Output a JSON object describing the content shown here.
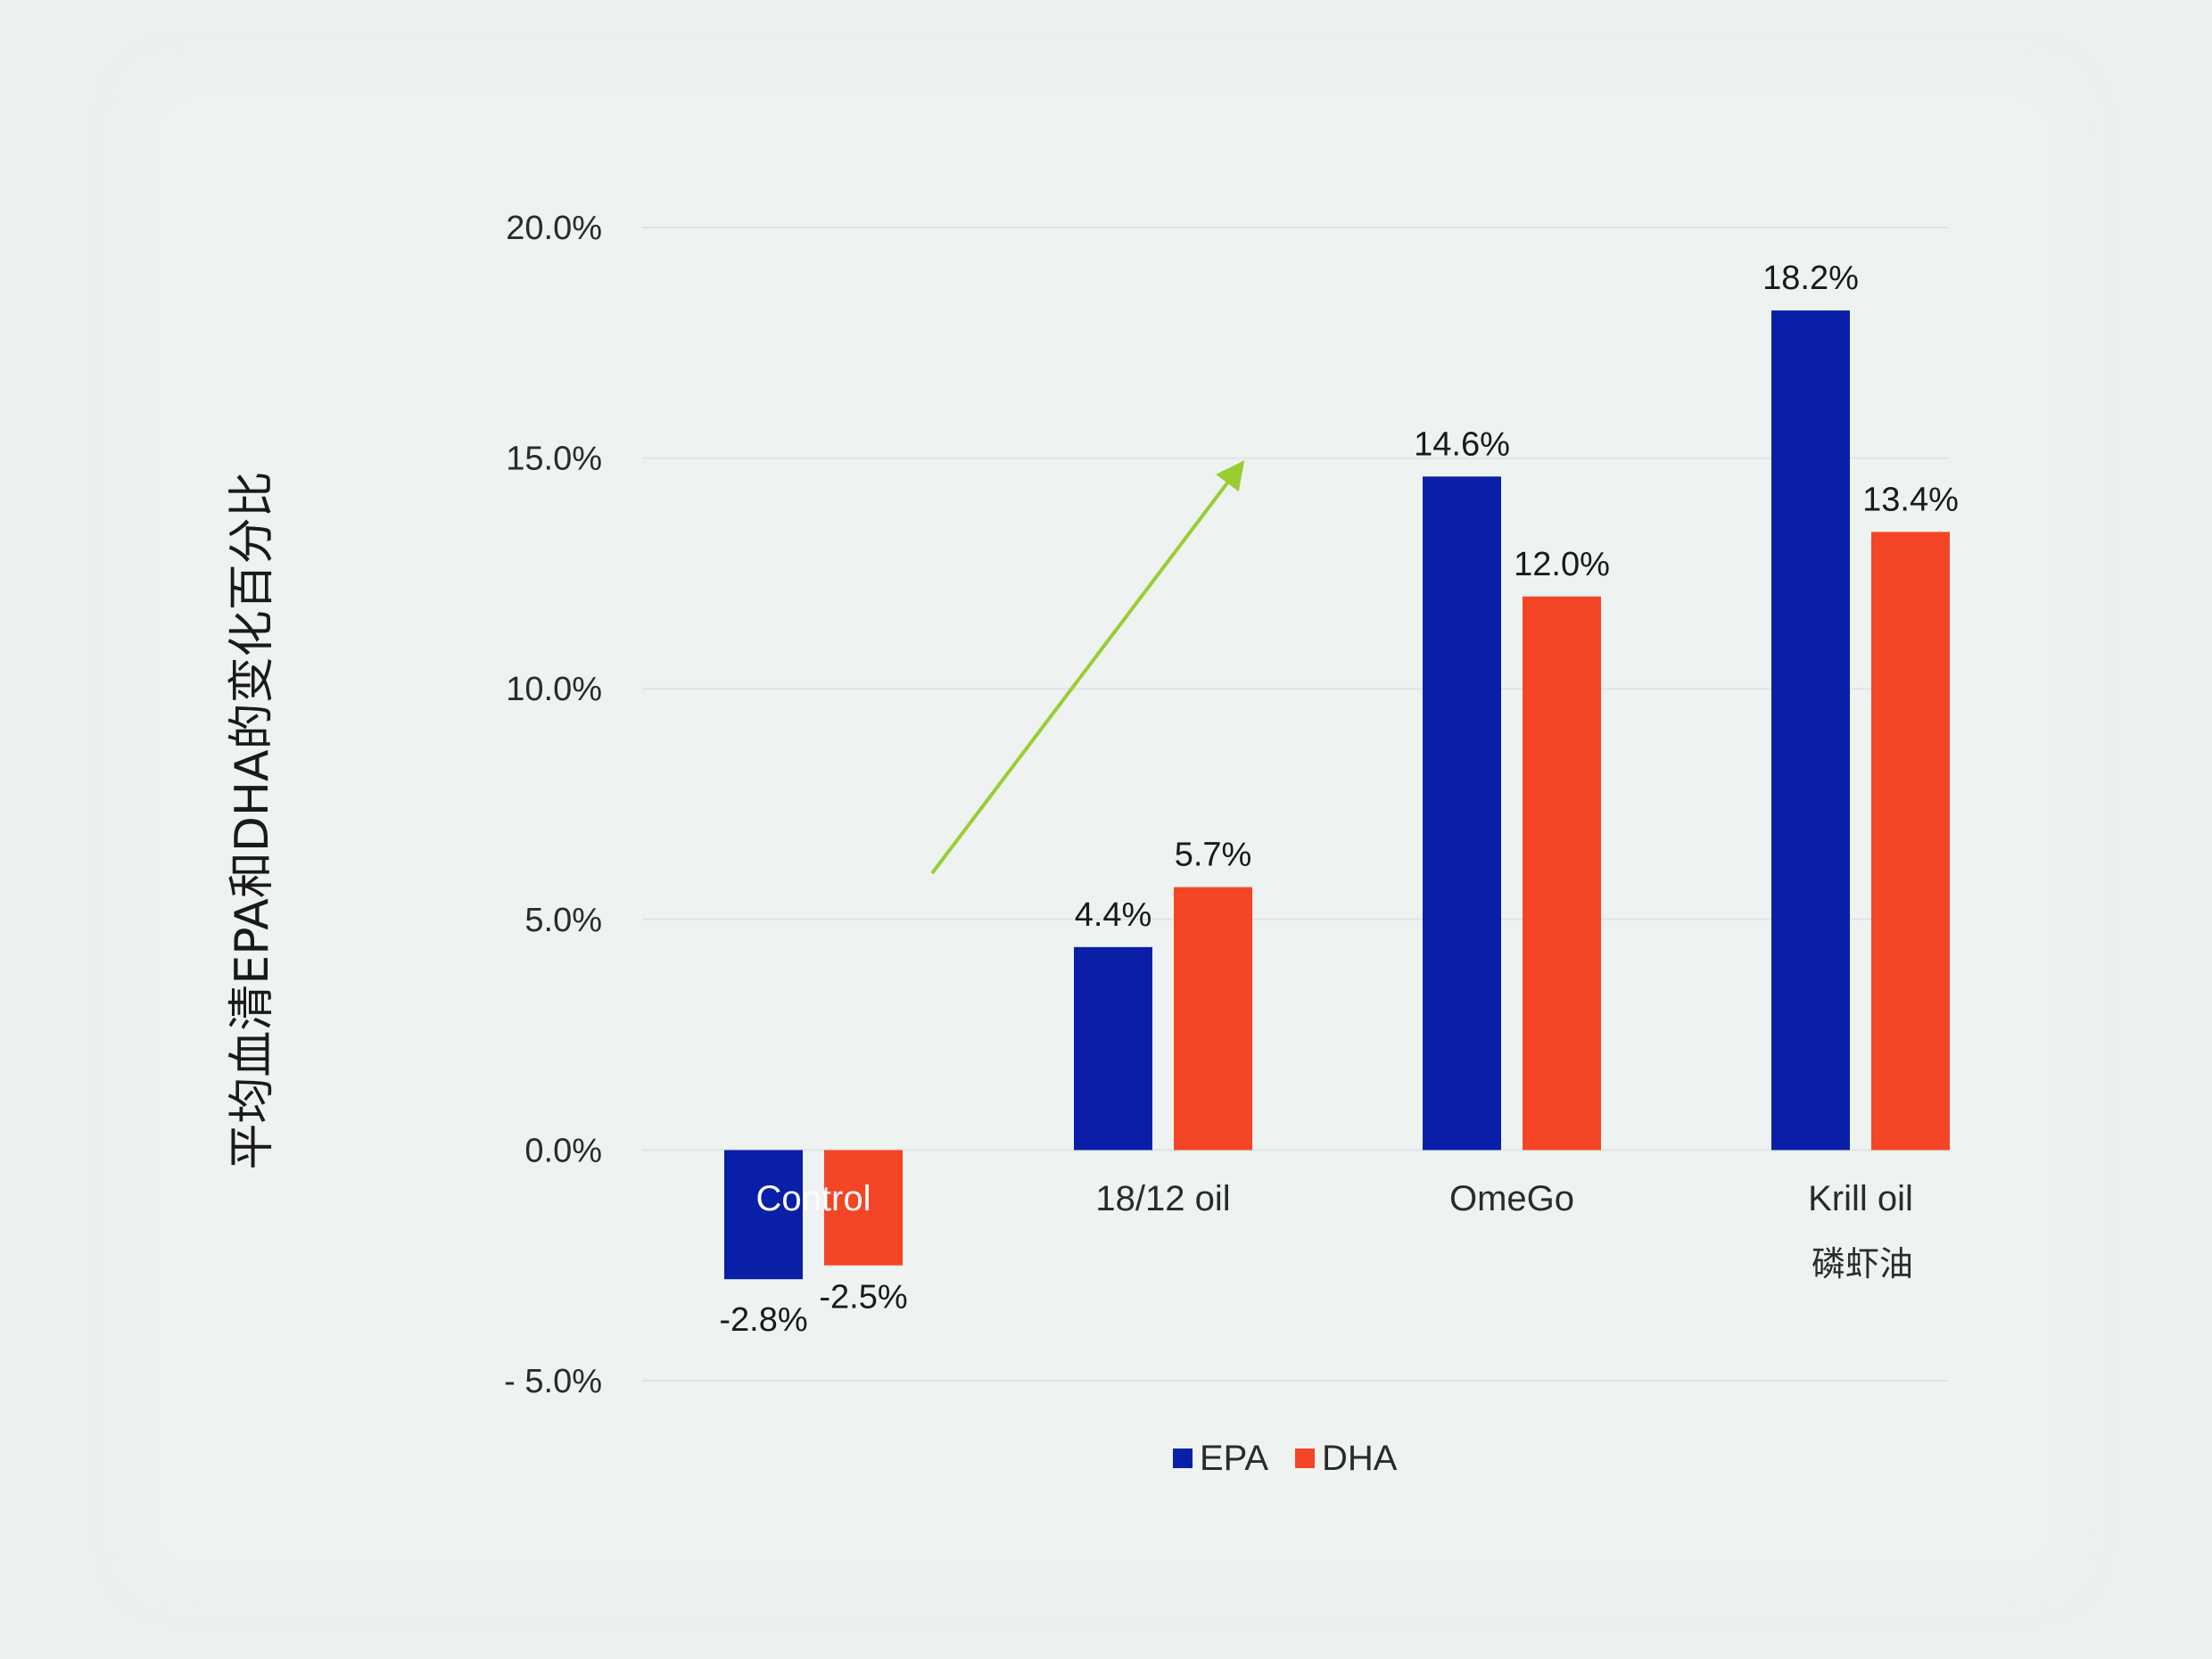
{
  "chart_data": {
    "type": "bar",
    "title": "",
    "ylabel": "平均血清EPA和DHA的变化百分比",
    "xlabel": "",
    "categories": [
      "Control",
      "18/12 oil",
      "OmeGo",
      "Krill oil"
    ],
    "category_sublabels": [
      "",
      "",
      "",
      "磷虾油"
    ],
    "series": [
      {
        "name": "EPA",
        "color": "#0a1fa8",
        "values": [
          -2.8,
          4.4,
          14.6,
          18.2
        ],
        "labels": [
          "-2.8%",
          "4.4%",
          "14.6%",
          "18.2%"
        ]
      },
      {
        "name": "DHA",
        "color": "#f44526",
        "values": [
          -2.5,
          5.7,
          12.0,
          13.4
        ],
        "labels": [
          "-2.5%",
          "5.7%",
          "12.0%",
          "13.4%"
        ]
      }
    ],
    "ylim": [
      -5,
      20
    ],
    "yticks": [
      20,
      15,
      10,
      5,
      0,
      -5
    ],
    "ytick_labels": [
      "20.0%",
      "15.0%",
      "10.0%",
      "5.0%",
      "0.0%",
      "- 5.0%"
    ],
    "grid": true,
    "legend_position": "bottom-center",
    "annotations": [
      {
        "type": "arrow",
        "color": "#9acd32",
        "from": {
          "category": 1,
          "y": 6.0
        },
        "to": {
          "category": 2,
          "y": 15.0
        }
      }
    ]
  }
}
